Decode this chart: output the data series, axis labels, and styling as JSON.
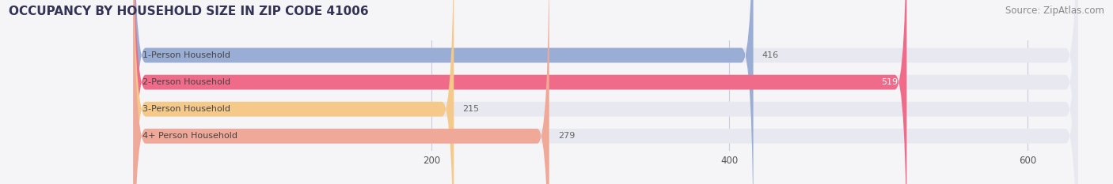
{
  "title": "OCCUPANCY BY HOUSEHOLD SIZE IN ZIP CODE 41006",
  "source": "Source: ZipAtlas.com",
  "categories": [
    "1-Person Household",
    "2-Person Household",
    "3-Person Household",
    "4+ Person Household"
  ],
  "values": [
    416,
    519,
    215,
    279
  ],
  "bar_colors": [
    "#9aadd4",
    "#f06b8a",
    "#f5c98a",
    "#f0a898"
  ],
  "bar_bg_color": "#e8e8f0",
  "xlim_max": 650,
  "xticks": [
    200,
    400,
    600
  ],
  "value_inside_threshold": 500,
  "value_label_color_inside": "#ffffff",
  "value_label_color_outside": "#666666",
  "title_fontsize": 11,
  "source_fontsize": 8.5,
  "bar_height": 0.55,
  "background_color": "#f5f5f8",
  "label_text_color": "#444444",
  "rounding_size": 8
}
